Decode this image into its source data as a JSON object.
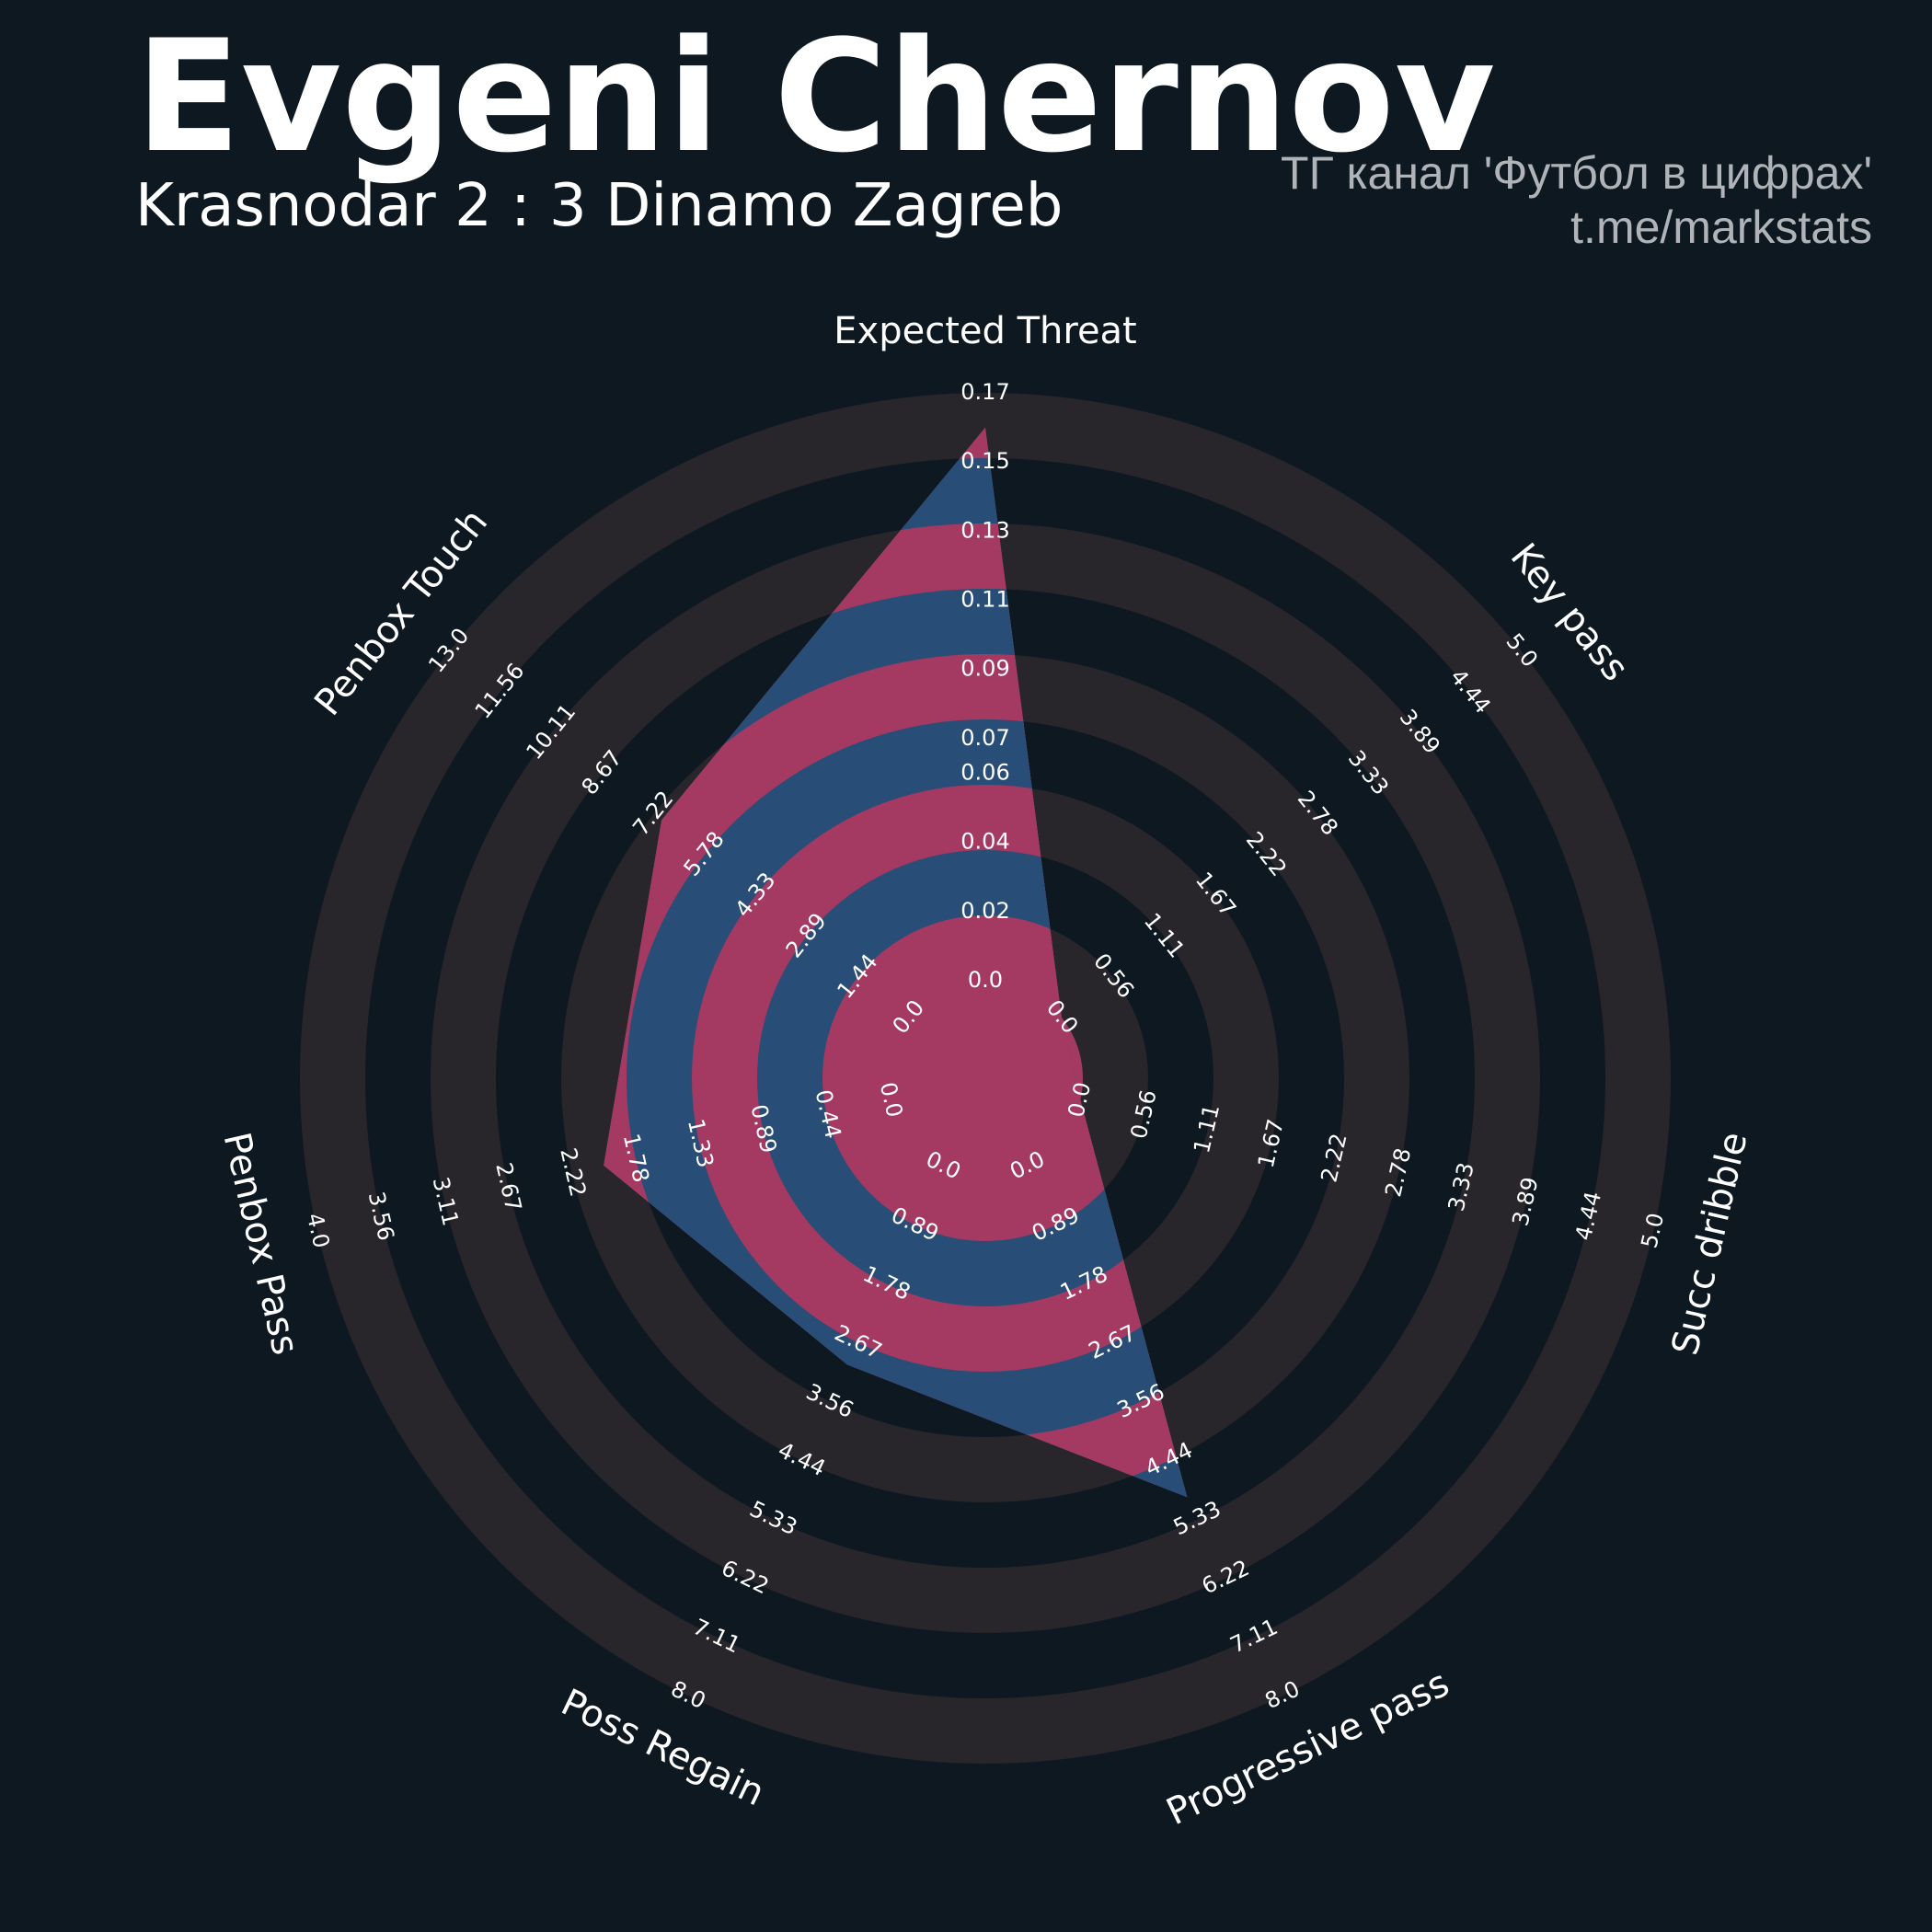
{
  "chart_data": {
    "type": "radar",
    "title": "Evgeni Chernov",
    "subtitle": "Krasnodar 2 : 3 Dinamo Zagreb",
    "credit": [
      "ТГ канал 'Футбол в цифрах'",
      "t.me/markstats"
    ],
    "categories": [
      "Expected Threat",
      "Key pass",
      "Succ dribble",
      "Progressive pass",
      "Poss Regain",
      "Penbox Pass",
      "Penbox Touch"
    ],
    "values": [
      0.16,
      0,
      0,
      5,
      3,
      2,
      7
    ],
    "colors": [
      "#284d76",
      "#a43a62"
    ],
    "ring_colors": [
      "#0e1821",
      "#28252b"
    ],
    "axes": [
      {
        "lim": [
          0,
          0.17
        ],
        "ticks": [
          {
            "value": 0,
            "label": "0.0"
          },
          0.02,
          0.04,
          0.06,
          0.07,
          0.09,
          0.11,
          0.13,
          0.15,
          0.17
        ]
      },
      {
        "lim": [
          0,
          5
        ],
        "ticks": [
          {
            "value": 0,
            "label": "0.0"
          },
          0.56,
          1.11,
          1.67,
          2.22,
          2.78,
          3.33,
          3.89,
          4.44,
          {
            "value": 5,
            "label": "5.0"
          }
        ]
      },
      {
        "lim": [
          0,
          5
        ],
        "ticks": [
          {
            "value": 0,
            "label": "0.0"
          },
          0.56,
          1.11,
          1.67,
          2.22,
          2.78,
          3.33,
          3.89,
          4.44,
          {
            "value": 5,
            "label": "5.0"
          }
        ]
      },
      {
        "lim": [
          0,
          8
        ],
        "ticks": [
          {
            "value": 0,
            "label": "0.0"
          },
          0.89,
          1.78,
          2.67,
          3.56,
          4.44,
          5.33,
          6.22,
          7.11,
          {
            "value": 8,
            "label": "8.0"
          }
        ]
      },
      {
        "lim": [
          0,
          8
        ],
        "ticks": [
          {
            "value": 0,
            "label": "0.0"
          },
          0.89,
          1.78,
          2.67,
          3.56,
          4.44,
          5.33,
          6.22,
          7.11,
          {
            "value": 8,
            "label": "8.0"
          }
        ]
      },
      {
        "lim": [
          0,
          4
        ],
        "ticks": [
          {
            "value": 0,
            "label": "0.0"
          },
          0.44,
          0.89,
          1.33,
          1.78,
          2.22,
          2.67,
          3.11,
          3.56,
          {
            "value": 4,
            "label": "4.0"
          }
        ]
      },
      {
        "lim": [
          0,
          13
        ],
        "ticks": [
          {
            "value": 0,
            "label": "0.0"
          },
          1.44,
          2.89,
          4.33,
          5.78,
          7.22,
          8.67,
          10.11,
          11.56,
          {
            "value": 13,
            "label": "13.0"
          }
        ]
      }
    ]
  }
}
